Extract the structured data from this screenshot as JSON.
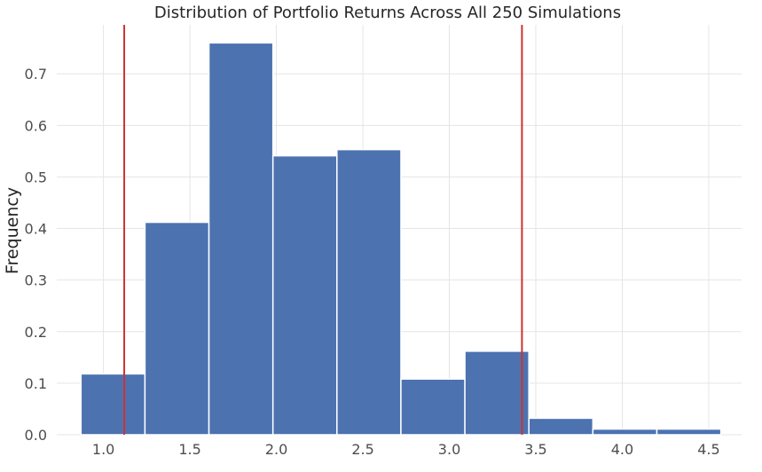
{
  "chart_data": {
    "type": "bar",
    "title": "Distribution of Portfolio Returns Across All 250 Simulations",
    "xlabel": "",
    "ylabel": "Frequency",
    "xlim": [
      0.73,
      4.69
    ],
    "ylim": [
      0,
      0.795
    ],
    "x_ticks": [
      1.0,
      1.5,
      2.0,
      2.5,
      3.0,
      3.5,
      4.0,
      4.5
    ],
    "x_tick_labels": [
      "1.0",
      "1.5",
      "2.0",
      "2.5",
      "3.0",
      "3.5",
      "4.0",
      "4.5"
    ],
    "y_ticks": [
      0.0,
      0.1,
      0.2,
      0.3,
      0.4,
      0.5,
      0.6,
      0.7
    ],
    "y_tick_labels": [
      "0.0",
      "0.1",
      "0.2",
      "0.3",
      "0.4",
      "0.5",
      "0.6",
      "0.7"
    ],
    "grid": true,
    "bins": [
      {
        "start": 0.87,
        "end": 1.24,
        "value": 0.118
      },
      {
        "start": 1.24,
        "end": 1.61,
        "value": 0.412
      },
      {
        "start": 1.61,
        "end": 1.98,
        "value": 0.76
      },
      {
        "start": 1.98,
        "end": 2.35,
        "value": 0.541
      },
      {
        "start": 2.35,
        "end": 2.72,
        "value": 0.553
      },
      {
        "start": 2.72,
        "end": 3.09,
        "value": 0.108
      },
      {
        "start": 3.09,
        "end": 3.46,
        "value": 0.162
      },
      {
        "start": 3.46,
        "end": 3.83,
        "value": 0.032
      },
      {
        "start": 3.83,
        "end": 4.2,
        "value": 0.011
      },
      {
        "start": 4.2,
        "end": 4.57,
        "value": 0.011
      }
    ],
    "reference_lines": [
      1.12,
      3.42
    ],
    "colors": {
      "bar": "#4c72b0",
      "bar_edge": "#ffffff",
      "reference_line": "#cc3333",
      "grid": "#e5e5e5",
      "background": "#ffffff"
    }
  }
}
